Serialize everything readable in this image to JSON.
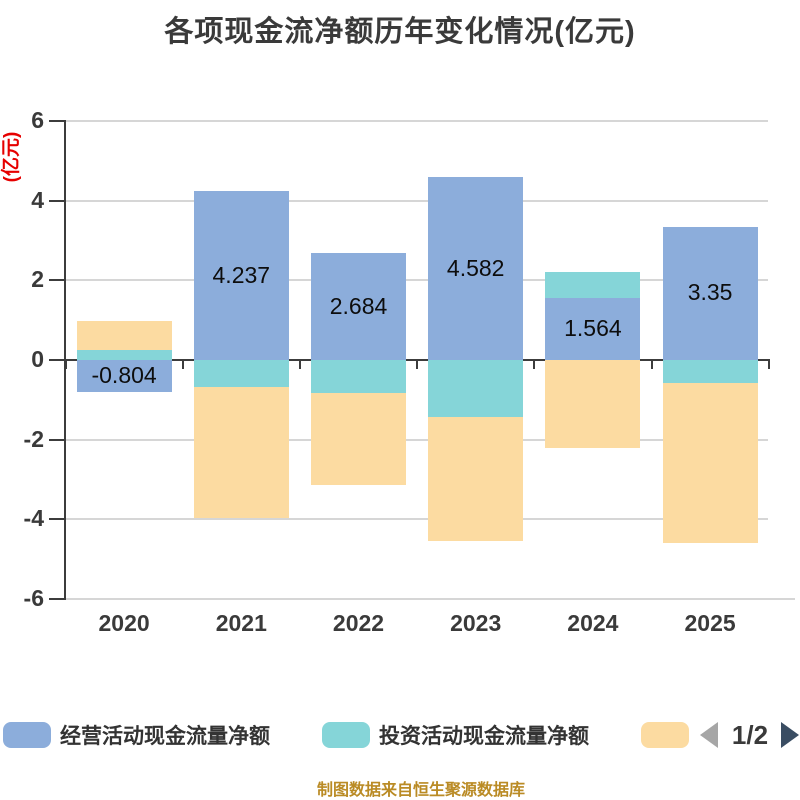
{
  "title": "各项现金流净额历年变化情况(亿元)",
  "source_note": "制图数据来自恒生聚源数据库",
  "legend": {
    "pagination_label": "1/2",
    "prev_icon": "left-triangle-icon",
    "next_icon": "right-triangle-icon"
  },
  "colors": {
    "operating": "#8caddb",
    "investing": "#85d5d8",
    "financing": "#fcdba1",
    "grid": "#d6d6d6",
    "axis": "#3c3c3c",
    "text": "#3a3a3a",
    "value_text": "#0d0d0d",
    "unit_label": "#e60000",
    "source": "#ba8b25",
    "prev_arrow": "#a6a6a6",
    "next_arrow": "#3a4d63"
  },
  "chart_data": {
    "type": "bar",
    "stacked": true,
    "title": "各项现金流净额历年变化情况(亿元)",
    "categories": [
      "2020",
      "2021",
      "2022",
      "2023",
      "2024",
      "2025"
    ],
    "series": [
      {
        "name": "经营活动现金流量净额",
        "color": "#8caddb",
        "values": [
          -0.804,
          4.237,
          2.684,
          4.582,
          1.564,
          3.35
        ],
        "labels": [
          "-0.804",
          "4.237",
          "2.684",
          "4.582",
          "1.564",
          "3.35"
        ]
      },
      {
        "name": "投资活动现金流量净额",
        "color": "#85d5d8",
        "values": [
          0.25,
          -0.67,
          -0.82,
          -1.43,
          0.64,
          -0.58
        ]
      },
      {
        "name": "",
        "color": "#fcdba1",
        "values": [
          0.73,
          -3.3,
          -2.32,
          -3.12,
          -2.21,
          -4.02
        ]
      }
    ],
    "y_axis": {
      "label": "(亿元)",
      "ticks": [
        6,
        4,
        2,
        0,
        -2,
        -4,
        -6
      ],
      "min": -6,
      "max": 6
    },
    "grid": true,
    "legend_position": "bottom"
  }
}
